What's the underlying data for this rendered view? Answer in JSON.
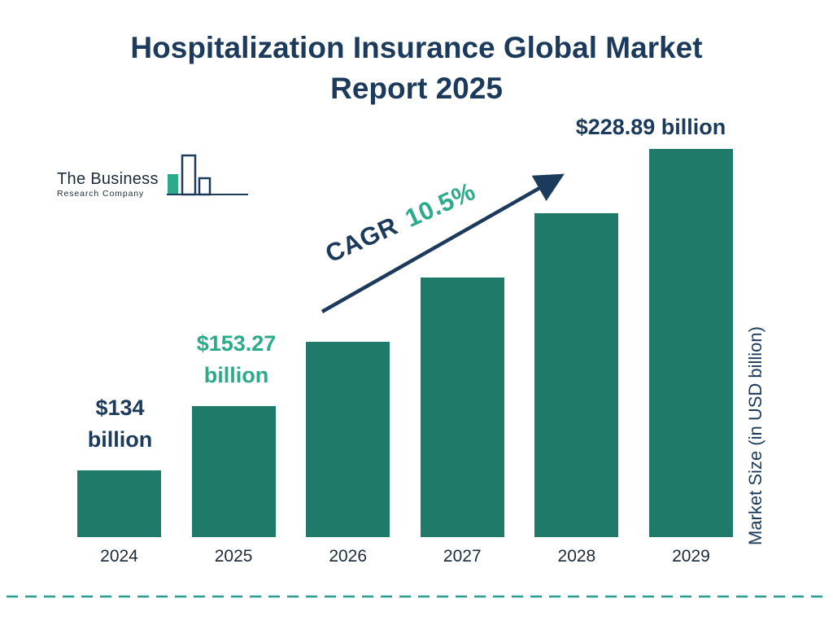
{
  "page": {
    "title": "Hospitalization Insurance Global Market Report 2025"
  },
  "logo": {
    "name_line1": "The Business",
    "name_line2": "Research Company"
  },
  "chart_data": {
    "type": "bar",
    "title": "Hospitalization Insurance Global Market Report 2025",
    "categories": [
      "2024",
      "2025",
      "2026",
      "2027",
      "2028",
      "2029"
    ],
    "values": [
      134,
      153.27,
      169.36,
      187.14,
      206.79,
      228.89
    ],
    "unit": "USD billion",
    "ylabel": "Market Size (in USD billion)",
    "xlabel": "",
    "grid": false,
    "legend_position": "none",
    "value_labels": [
      {
        "category": "2024",
        "lines": [
          "$134",
          "billion"
        ],
        "color": "#1B3A5C"
      },
      {
        "category": "2025",
        "lines": [
          "$153.27",
          "billion"
        ],
        "color": "#2CAB8A"
      },
      {
        "category": "2029",
        "lines": [
          "$228.89 billion"
        ],
        "color": "#1B3A5C"
      }
    ],
    "cagr": {
      "label": "CAGR",
      "value": "10.5%"
    }
  },
  "colors": {
    "navy": "#1B3A5C",
    "ink": "#1C2B3A",
    "bar_teal": "#1F7A6A",
    "green_accent": "#2CAB8A",
    "dashed_rule": "#2A9D8F"
  }
}
